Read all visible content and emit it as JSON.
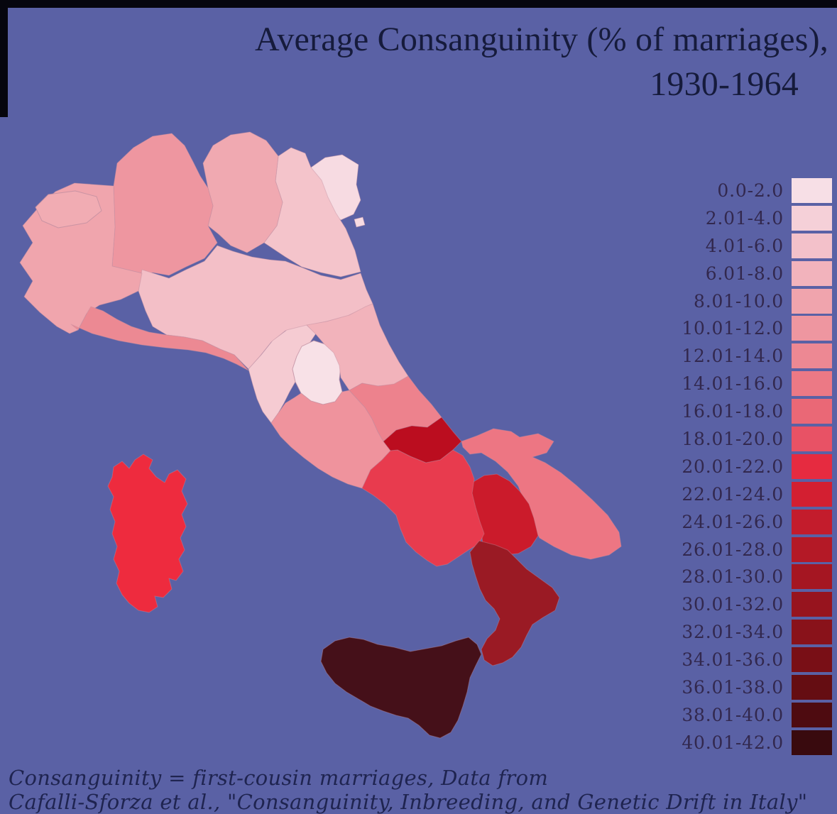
{
  "title": {
    "line1": "Average Consanguinity (% of marriages),",
    "line2": "1930-1964"
  },
  "caption": {
    "line1": "Consanguinity = first-cousin marriages, Data from",
    "line2": "Cafalli-Sforza et al., \"Consanguinity, Inbreeding, and Genetic Drift in Italy\""
  },
  "colors": {
    "background": "#5A61A5",
    "photo_border": "#06060E",
    "title_text": "#161B3C",
    "legend_text": "#32284E",
    "caption_text": "#1F2450",
    "region_stroke": "#C08FA0"
  },
  "legend": {
    "items": [
      {
        "label": "0.0-2.0",
        "color": "#F7DFE6"
      },
      {
        "label": "2.01-4.0",
        "color": "#F5D0D8"
      },
      {
        "label": "4.01-6.0",
        "color": "#F3C1CA"
      },
      {
        "label": "6.01-8.0",
        "color": "#F2B3BC"
      },
      {
        "label": "8.01-10.0",
        "color": "#F0A4AD"
      },
      {
        "label": "10.01-12.0",
        "color": "#EE96A0"
      },
      {
        "label": "12.01-14.0",
        "color": "#ED8893"
      },
      {
        "label": "14.01-16.0",
        "color": "#EC7985"
      },
      {
        "label": "16.01-18.0",
        "color": "#EA6876"
      },
      {
        "label": "18.01-20.0",
        "color": "#E85265"
      },
      {
        "label": "20.01-22.0",
        "color": "#E62B40"
      },
      {
        "label": "22.01-24.0",
        "color": "#D31F31"
      },
      {
        "label": "24.01-26.0",
        "color": "#C31C2C"
      },
      {
        "label": "26.01-28.0",
        "color": "#B41926"
      },
      {
        "label": "28.01-30.0",
        "color": "#A51622"
      },
      {
        "label": "30.01-32.0",
        "color": "#97141E"
      },
      {
        "label": "32.01-34.0",
        "color": "#89121A"
      },
      {
        "label": "34.01-36.0",
        "color": "#790F16"
      },
      {
        "label": "36.01-38.0",
        "color": "#650D12"
      },
      {
        "label": "38.01-40.0",
        "color": "#4E0B10"
      },
      {
        "label": "40.01-42.0",
        "color": "#390A0E"
      }
    ]
  },
  "map": {
    "regions": {
      "piedmont": {
        "bin": "8.01-10.0",
        "color": "#F0A5AD"
      },
      "vda": {
        "bin": "8.01-10.0",
        "color": "#F1ACB3"
      },
      "lombardy": {
        "bin": "10.01-12.0",
        "color": "#EE96A0"
      },
      "trentino": {
        "bin": "8.01-10.0",
        "color": "#F0A9B1"
      },
      "veneto": {
        "bin": "4.01-6.0",
        "color": "#F4C4CB"
      },
      "friuli": {
        "bin": "2.01-4.0",
        "color": "#F7DBE2"
      },
      "liguria": {
        "bin": "12.01-14.0",
        "color": "#EC8993"
      },
      "emilia": {
        "bin": "6.01-8.0",
        "color": "#F3BFC7"
      },
      "tuscany": {
        "bin": "4.01-6.0",
        "color": "#F5CBD2"
      },
      "umbria": {
        "bin": "0.0-2.0",
        "color": "#F8E1E7"
      },
      "marche": {
        "bin": "6.01-8.0",
        "color": "#F2B3BB"
      },
      "lazio": {
        "bin": "10.01-12.0",
        "color": "#EF939D"
      },
      "abruzzo": {
        "bin": "12.01-14.0",
        "color": "#ED828D"
      },
      "molise": {
        "bin": "28.01-30.0",
        "color": "#BB0D1F"
      },
      "campania": {
        "bin": "18.01-20.0",
        "color": "#E83B4E"
      },
      "puglia": {
        "bin": "14.01-16.0",
        "color": "#ED7683"
      },
      "basilicata": {
        "bin": "24.01-26.0",
        "color": "#CB1B2B"
      },
      "calabria": {
        "bin": "30.01-32.0",
        "color": "#9A1A24"
      },
      "sicily": {
        "bin": "40.01-42.0",
        "color": "#451019"
      },
      "sardinia": {
        "bin": "20.01-22.0",
        "color": "#EE2B3E"
      }
    }
  },
  "chart_data": {
    "type": "heatmap",
    "title": "Average Consanguinity (% of marriages), 1930-1964",
    "legend_position": "right",
    "bins": [
      "0.0-2.0",
      "2.01-4.0",
      "4.01-6.0",
      "6.01-8.0",
      "8.01-10.0",
      "10.01-12.0",
      "12.01-14.0",
      "14.01-16.0",
      "16.01-18.0",
      "18.01-20.0",
      "20.01-22.0",
      "22.01-24.0",
      "24.01-26.0",
      "26.01-28.0",
      "28.01-30.0",
      "30.01-32.0",
      "32.01-34.0",
      "34.01-36.0",
      "36.01-38.0",
      "38.01-40.0",
      "40.01-42.0"
    ],
    "regions": [
      {
        "region": "piedmont",
        "bin": "8.01-10.0"
      },
      {
        "region": "valle-d-aosta",
        "bin": "8.01-10.0"
      },
      {
        "region": "lombardy",
        "bin": "10.01-12.0"
      },
      {
        "region": "trentino-alto-adige",
        "bin": "8.01-10.0"
      },
      {
        "region": "veneto",
        "bin": "4.01-6.0"
      },
      {
        "region": "friuli-venezia-giulia",
        "bin": "2.01-4.0"
      },
      {
        "region": "liguria",
        "bin": "12.01-14.0"
      },
      {
        "region": "emilia-romagna",
        "bin": "6.01-8.0"
      },
      {
        "region": "tuscany",
        "bin": "4.01-6.0"
      },
      {
        "region": "umbria",
        "bin": "0.0-2.0"
      },
      {
        "region": "marche",
        "bin": "6.01-8.0"
      },
      {
        "region": "lazio",
        "bin": "10.01-12.0"
      },
      {
        "region": "abruzzo",
        "bin": "12.01-14.0"
      },
      {
        "region": "molise",
        "bin": "28.01-30.0"
      },
      {
        "region": "campania",
        "bin": "18.01-20.0"
      },
      {
        "region": "puglia",
        "bin": "14.01-16.0"
      },
      {
        "region": "basilicata",
        "bin": "24.01-26.0"
      },
      {
        "region": "calabria",
        "bin": "30.01-32.0"
      },
      {
        "region": "sicily",
        "bin": "40.01-42.0"
      },
      {
        "region": "sardinia",
        "bin": "20.01-22.0"
      }
    ]
  }
}
